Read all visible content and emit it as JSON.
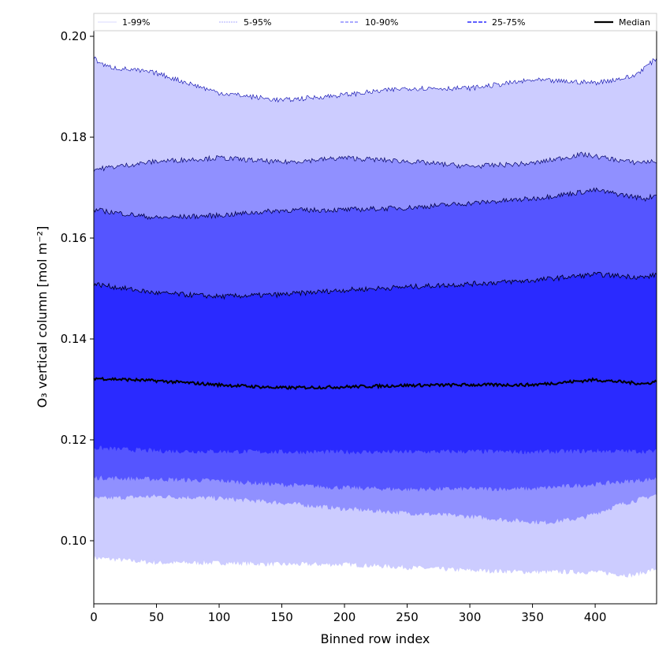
{
  "chart_data": {
    "type": "area",
    "title": "",
    "xlabel": "Binned row index",
    "ylabel": "O₃ vertical column [mol m⁻²]",
    "xlim": [
      0,
      449
    ],
    "ylim": [
      0.0875,
      0.2011
    ],
    "xticks": [
      0,
      50,
      100,
      150,
      200,
      250,
      300,
      350,
      400
    ],
    "yticks": [
      0.1,
      0.12,
      0.14,
      0.16,
      0.18,
      0.2
    ],
    "ytick_labels": [
      "0.10",
      "0.12",
      "0.14",
      "0.16",
      "0.18",
      "0.20"
    ],
    "legend": {
      "placement": "top",
      "entries": [
        {
          "label": "1-99%",
          "color": "#ccccff",
          "style": "thin"
        },
        {
          "label": "5-95%",
          "color": "#9090ff",
          "style": "dashed"
        },
        {
          "label": "10-90%",
          "color": "#5555ff",
          "style": "dashed"
        },
        {
          "label": "25-75%",
          "color": "#2a2aff",
          "style": "dashed"
        },
        {
          "label": "Median",
          "color": "#000000",
          "style": "solid"
        }
      ]
    },
    "percentiles": {
      "p1": {
        "x": [
          0,
          50,
          100,
          150,
          200,
          250,
          300,
          350,
          400,
          430,
          449
        ],
        "y": [
          0.0966,
          0.0956,
          0.0956,
          0.0953,
          0.0953,
          0.0947,
          0.0941,
          0.0938,
          0.0938,
          0.0931,
          0.0944
        ]
      },
      "p5": {
        "x": [
          0,
          50,
          100,
          150,
          200,
          250,
          300,
          330,
          360,
          390,
          420,
          449
        ],
        "y": [
          0.1083,
          0.1088,
          0.1084,
          0.1075,
          0.1063,
          0.1055,
          0.1048,
          0.1041,
          0.1036,
          0.1045,
          0.1072,
          0.1091
        ]
      },
      "p10": {
        "x": [
          0,
          50,
          100,
          150,
          200,
          250,
          300,
          350,
          400,
          449
        ],
        "y": [
          0.1125,
          0.1122,
          0.1119,
          0.1111,
          0.1105,
          0.1102,
          0.1103,
          0.1103,
          0.1112,
          0.1123
        ]
      },
      "p25": {
        "x": [
          0,
          50,
          100,
          150,
          200,
          250,
          300,
          350,
          400,
          449
        ],
        "y": [
          0.1184,
          0.1178,
          0.1177,
          0.1176,
          0.1176,
          0.1176,
          0.1177,
          0.1176,
          0.1178,
          0.1177
        ]
      },
      "median": {
        "x": [
          0,
          50,
          100,
          150,
          200,
          250,
          300,
          350,
          400,
          440,
          449
        ],
        "y": [
          0.1322,
          0.1317,
          0.1309,
          0.1303,
          0.1305,
          0.1308,
          0.1309,
          0.1309,
          0.1319,
          0.1311,
          0.1316
        ]
      },
      "p75": {
        "x": [
          0,
          50,
          100,
          150,
          200,
          250,
          300,
          350,
          400,
          440,
          449
        ],
        "y": [
          0.1509,
          0.1491,
          0.1484,
          0.1488,
          0.1497,
          0.1503,
          0.1509,
          0.1516,
          0.1528,
          0.1522,
          0.1528
        ]
      },
      "p90": {
        "x": [
          0,
          50,
          100,
          150,
          200,
          250,
          300,
          350,
          400,
          440,
          449
        ],
        "y": [
          0.1656,
          0.164,
          0.1645,
          0.1655,
          0.1656,
          0.166,
          0.1669,
          0.1678,
          0.1695,
          0.1678,
          0.1686
        ]
      },
      "p95": {
        "x": [
          0,
          50,
          100,
          150,
          200,
          250,
          300,
          350,
          390,
          430,
          449
        ],
        "y": [
          0.1736,
          0.1752,
          0.1759,
          0.175,
          0.1759,
          0.1752,
          0.1742,
          0.1748,
          0.1766,
          0.175,
          0.1752
        ]
      },
      "p99": {
        "x": [
          0,
          10,
          50,
          100,
          150,
          200,
          250,
          300,
          350,
          400,
          430,
          449
        ],
        "y": [
          0.1956,
          0.194,
          0.1927,
          0.1888,
          0.1873,
          0.1884,
          0.1897,
          0.1897,
          0.1913,
          0.1908,
          0.192,
          0.1956
        ]
      }
    },
    "bands": [
      {
        "name": "1-99%",
        "lower": "p1",
        "upper": "p99",
        "color": "#ccccff"
      },
      {
        "name": "5-95%",
        "lower": "p5",
        "upper": "p95",
        "color": "#9090ff"
      },
      {
        "name": "10-90%",
        "lower": "p10",
        "upper": "p90",
        "color": "#5555ff"
      },
      {
        "name": "25-75%",
        "lower": "p25",
        "upper": "p75",
        "color": "#2a2aff"
      }
    ]
  }
}
